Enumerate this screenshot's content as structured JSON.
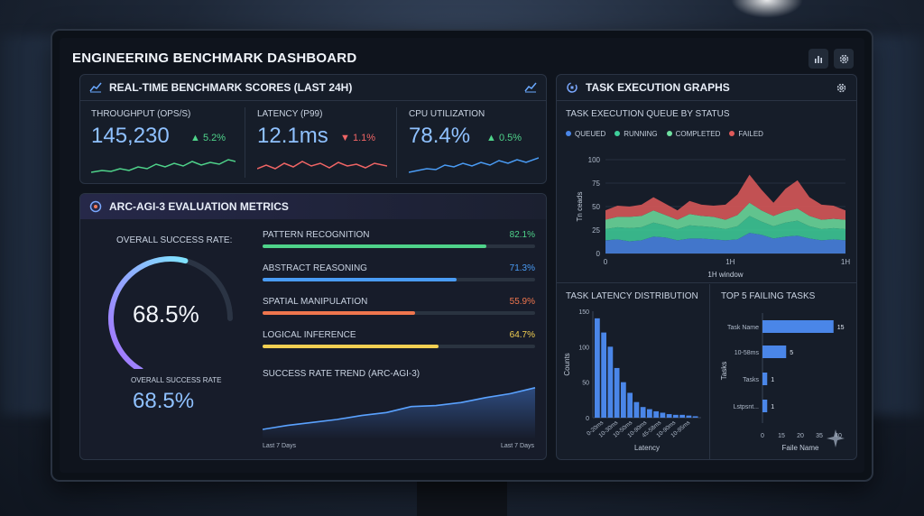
{
  "app": {
    "title": "ENGINEERING BENCHMARK DASHBOARD"
  },
  "realtime": {
    "title": "REAL-TIME BENCHMARK SCORES (LAST 24H)",
    "metrics": [
      {
        "label": "THROUGHPUT (OPS/S)",
        "value": "145,230",
        "delta": "5.2%",
        "direction": "up",
        "color": "#4fd38a"
      },
      {
        "label": "LATENCY (P99)",
        "value": "12.1ms",
        "delta": "1.1%",
        "direction": "down",
        "color": "#f06565"
      },
      {
        "label": "CPU UTILIZATION",
        "value": "78.4%",
        "delta": "0.5%",
        "direction": "up",
        "color": "#4a9cf5"
      }
    ]
  },
  "arc": {
    "title": "ARC-AGI-3 EVALUATION METRICS",
    "overall_label": "OVERALL SUCCESS RATE:",
    "overall_value": "68.5%",
    "overall_fraction": 0.685,
    "overall_label2": "OVERALL SUCCESS RATE",
    "overall_value2": "68.5%",
    "bars": [
      {
        "label": "PATTERN RECOGNITION",
        "value": "82.1%",
        "fraction": 0.821,
        "color": "#4fd38a"
      },
      {
        "label": "ABSTRACT REASONING",
        "value": "71.3%",
        "fraction": 0.713,
        "color": "#4a9cf5"
      },
      {
        "label": "SPATIAL MANIPULATION",
        "value": "55.9%",
        "fraction": 0.559,
        "color": "#f0764e"
      },
      {
        "label": "LOGICAL INFERENCE",
        "value": "64.7%",
        "fraction": 0.647,
        "color": "#f2cf52"
      }
    ],
    "trend_title": "SUCCESS RATE TREND (ARC-AGI-3)",
    "trend_x_left": "Last 7 Days",
    "trend_x_right": "Last 7 Days"
  },
  "task": {
    "title": "TASK EXECUTION GRAPHS",
    "queue_title": "TASK EXECUTION QUEUE BY STATUS",
    "legend": [
      {
        "label": "QUEUED",
        "color": "#4a86e8"
      },
      {
        "label": "RUNNING",
        "color": "#3ecf9a"
      },
      {
        "label": "COMPLETED",
        "color": "#6fe0a0"
      },
      {
        "label": "FAILED",
        "color": "#e05a5a"
      }
    ],
    "yticks": [
      "100",
      "75",
      "50",
      "25",
      "0"
    ],
    "xticks": [
      "0",
      "1H",
      "1H"
    ],
    "ylabel": "Tn ceads",
    "xlabel": "1H window",
    "latency_title": "TASK LATENCY DISTRIBUTION",
    "latency_ylabel": "Counts",
    "latency_xlabel": "Latency",
    "latency_yticks": [
      "150",
      "100",
      "50",
      "0"
    ],
    "latency_xticks": [
      "0-20ms",
      "10-30ms",
      "10-50ms",
      "10-90ms",
      "45-58ms",
      "10-90ms",
      "10-95ms"
    ],
    "failing_title": "TOP 5 FAILING TASKS",
    "failing_ylabel": "Tasks",
    "failing_xlabel": "Faile Name",
    "failing_xticks": [
      "0",
      "15",
      "20",
      "35",
      "40"
    ]
  },
  "chart_data": [
    {
      "type": "area",
      "title": "TASK EXECUTION QUEUE BY STATUS",
      "xlabel": "1H window",
      "ylabel": "Tn ceads",
      "ylim": [
        0,
        100
      ],
      "x": [
        0,
        1,
        2,
        3,
        4,
        5,
        6,
        7,
        8,
        9,
        10,
        11,
        12,
        13,
        14,
        15,
        16,
        17,
        18,
        19,
        20
      ],
      "series": [
        {
          "name": "QUEUED",
          "values": [
            14,
            15,
            13,
            14,
            18,
            17,
            14,
            16,
            16,
            15,
            14,
            15,
            22,
            20,
            16,
            18,
            19,
            16,
            14,
            15,
            14
          ]
        },
        {
          "name": "RUNNING",
          "values": [
            12,
            13,
            14,
            14,
            15,
            13,
            12,
            14,
            13,
            13,
            12,
            14,
            18,
            14,
            13,
            15,
            16,
            13,
            12,
            12,
            12
          ]
        },
        {
          "name": "COMPLETED",
          "values": [
            10,
            11,
            12,
            12,
            13,
            11,
            10,
            12,
            11,
            11,
            10,
            12,
            14,
            12,
            11,
            12,
            13,
            11,
            10,
            10,
            10
          ]
        },
        {
          "name": "FAILED",
          "values": [
            10,
            12,
            11,
            12,
            14,
            12,
            10,
            14,
            12,
            12,
            16,
            22,
            30,
            22,
            14,
            24,
            30,
            20,
            16,
            14,
            10
          ]
        }
      ]
    },
    {
      "type": "bar",
      "title": "TASK LATENCY DISTRIBUTION",
      "xlabel": "Latency",
      "ylabel": "Counts",
      "ylim": [
        0,
        150
      ],
      "values": [
        140,
        120,
        100,
        70,
        50,
        35,
        22,
        15,
        12,
        9,
        7,
        5,
        4,
        4,
        3,
        2
      ]
    },
    {
      "type": "bar",
      "title": "TOP 5 FAILING TASKS",
      "xlabel": "Faile Name",
      "ylabel": "Tasks",
      "categories": [
        "Task Name",
        "10-58ms",
        "Tasks",
        "Lstpsnt..."
      ],
      "values": [
        15,
        5,
        1,
        1
      ]
    },
    {
      "type": "line",
      "title": "SUCCESS RATE TREND (ARC-AGI-3)",
      "values": [
        10,
        14,
        17,
        20,
        24,
        27,
        33,
        34,
        37,
        42,
        46,
        52
      ]
    }
  ]
}
